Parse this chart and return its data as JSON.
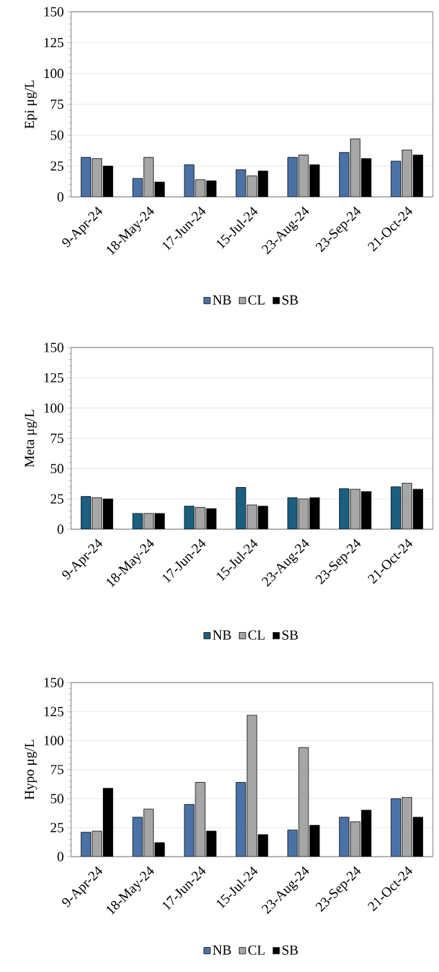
{
  "chart_data": [
    {
      "type": "bar",
      "ylabel": "Epi μg/L",
      "categories": [
        "9-Apr-24",
        "18-May-24",
        "17-Jun-24",
        "15-Jul-24",
        "23-Aug-24",
        "23-Sep-24",
        "21-Oct-24"
      ],
      "ylim": [
        0,
        150
      ],
      "yticks": [
        0,
        25,
        50,
        75,
        100,
        125,
        150
      ],
      "grid": "y",
      "legend": "bottom",
      "series": [
        {
          "name": "NB",
          "color": "#4a72a6",
          "values": [
            32,
            15,
            26,
            22,
            32,
            36,
            29
          ]
        },
        {
          "name": "CL",
          "color": "#a6a6a6",
          "values": [
            31,
            32,
            14,
            17,
            34,
            47,
            38
          ]
        },
        {
          "name": "SB",
          "color": "#000000",
          "values": [
            25,
            12,
            13,
            21,
            26,
            31,
            34
          ]
        }
      ]
    },
    {
      "type": "bar",
      "ylabel": "Meta μg/L",
      "categories": [
        "9-Apr-24",
        "18-May-24",
        "17-Jun-24",
        "15-Jul-24",
        "23-Aug-24",
        "23-Sep-24",
        "21-Oct-24"
      ],
      "ylim": [
        0,
        150
      ],
      "yticks": [
        0,
        25,
        50,
        75,
        100,
        125,
        150
      ],
      "grid": "y",
      "legend": "bottom",
      "series": [
        {
          "name": "NB",
          "color": "#1b5e80",
          "values": [
            27,
            13,
            19,
            34.5,
            26,
            33.5,
            35
          ]
        },
        {
          "name": "CL",
          "color": "#a6a6a6",
          "values": [
            26,
            13,
            18,
            20,
            25,
            33,
            38
          ]
        },
        {
          "name": "SB",
          "color": "#000000",
          "values": [
            25,
            13,
            17,
            19,
            26,
            31,
            33
          ]
        }
      ]
    },
    {
      "type": "bar",
      "ylabel": "Hypo  μg/L",
      "categories": [
        "9-Apr-24",
        "18-May-24",
        "17-Jun-24",
        "15-Jul-24",
        "23-Aug-24",
        "23-Sep-24",
        "21-Oct-24"
      ],
      "ylim": [
        0,
        150
      ],
      "yticks": [
        0,
        25,
        50,
        75,
        100,
        125,
        150
      ],
      "grid": "y",
      "legend": "bottom",
      "series": [
        {
          "name": "NB",
          "color": "#4a72a6",
          "values": [
            21,
            34,
            45,
            64,
            23,
            34,
            50
          ]
        },
        {
          "name": "CL",
          "color": "#a6a6a6",
          "values": [
            22,
            41,
            64,
            122,
            94,
            30,
            51
          ]
        },
        {
          "name": "SB",
          "color": "#000000",
          "values": [
            59,
            12,
            22,
            19,
            27,
            40,
            34
          ]
        }
      ]
    }
  ]
}
